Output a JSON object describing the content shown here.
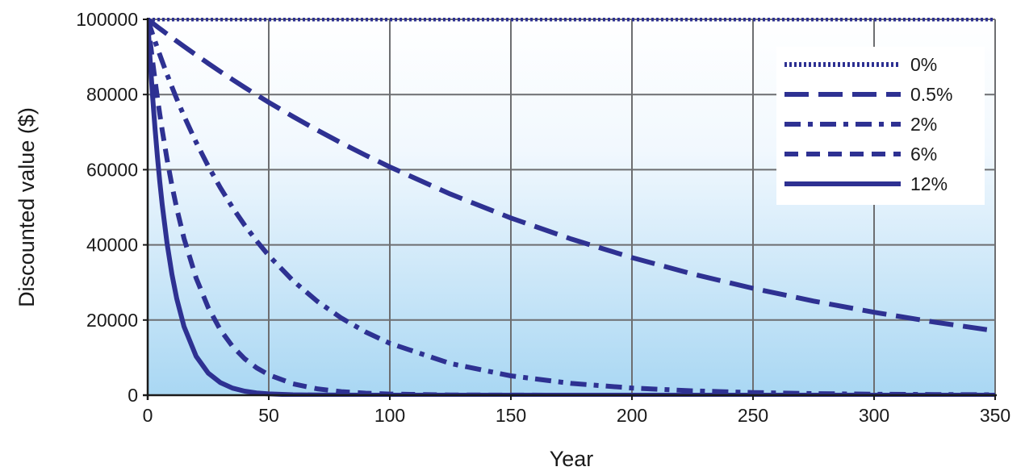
{
  "chart_data": {
    "type": "line",
    "title": "",
    "xlabel": "Year",
    "ylabel": "Discounted value ($)",
    "xlim": [
      0,
      350
    ],
    "ylim": [
      0,
      100000
    ],
    "x_ticks": [
      "0",
      "50",
      "100",
      "150",
      "200",
      "250",
      "300",
      "350"
    ],
    "y_ticks": [
      "0",
      "20000",
      "40000",
      "60000",
      "80000",
      "100000"
    ],
    "grid": true,
    "legend_position": "top-right",
    "background": "gradient white to light blue",
    "line_color": "#2e3192",
    "x": [
      0,
      1,
      2,
      3,
      4,
      5,
      6,
      8,
      10,
      12,
      15,
      20,
      25,
      30,
      35,
      40,
      45,
      50,
      60,
      70,
      80,
      90,
      100,
      125,
      150,
      175,
      200,
      225,
      250,
      275,
      300,
      325,
      350
    ],
    "series": [
      {
        "name": "0%",
        "rate": 0,
        "dash": "dotted",
        "values": [
          100000,
          100000,
          100000,
          100000,
          100000,
          100000,
          100000,
          100000,
          100000,
          100000,
          100000,
          100000,
          100000,
          100000,
          100000,
          100000,
          100000,
          100000,
          100000,
          100000,
          100000,
          100000,
          100000,
          100000,
          100000,
          100000,
          100000,
          100000,
          100000,
          100000,
          100000,
          100000,
          100000
        ]
      },
      {
        "name": "0.5%",
        "rate": 0.005,
        "dash": "long-dash",
        "values": [
          100000,
          99502,
          99007,
          98515,
          98025,
          97537,
          97052,
          96089,
          95135,
          94191,
          92792,
          90506,
          88277,
          86103,
          83982,
          81914,
          79896,
          77928,
          74137,
          70530,
          67099,
          63834,
          60729,
          53513,
          47152,
          41547,
          36610,
          32258,
          28424,
          25046,
          22069,
          19446,
          17135
        ]
      },
      {
        "name": "2%",
        "rate": 0.02,
        "dash": "dash-dot",
        "values": [
          100000,
          98039,
          96117,
          94232,
          92385,
          90573,
          88797,
          85349,
          82035,
          78849,
          74301,
          67297,
          60953,
          55207,
          50003,
          45289,
          41020,
          37153,
          30478,
          25003,
          20511,
          16826,
          13803,
          8424,
          5141,
          3137,
          1915,
          1168,
          713,
          435,
          265,
          162,
          99
        ]
      },
      {
        "name": "6%",
        "rate": 0.06,
        "dash": "short-dash",
        "values": [
          100000,
          94340,
          89000,
          83962,
          79209,
          74726,
          70496,
          62741,
          55839,
          49697,
          41727,
          31180,
          23300,
          17411,
          13011,
          9722,
          7265,
          5429,
          3031,
          1693,
          945,
          528,
          295,
          68,
          16,
          4,
          1,
          0,
          0,
          0,
          0,
          0,
          0
        ]
      },
      {
        "name": "12%",
        "rate": 0.12,
        "dash": "solid",
        "values": [
          100000,
          89286,
          79719,
          71178,
          63552,
          56743,
          50663,
          40388,
          32197,
          25668,
          18270,
          10367,
          5882,
          3338,
          1894,
          1075,
          610,
          346,
          111,
          36,
          11,
          4,
          1,
          0,
          0,
          0,
          0,
          0,
          0,
          0,
          0,
          0,
          0
        ]
      }
    ]
  }
}
